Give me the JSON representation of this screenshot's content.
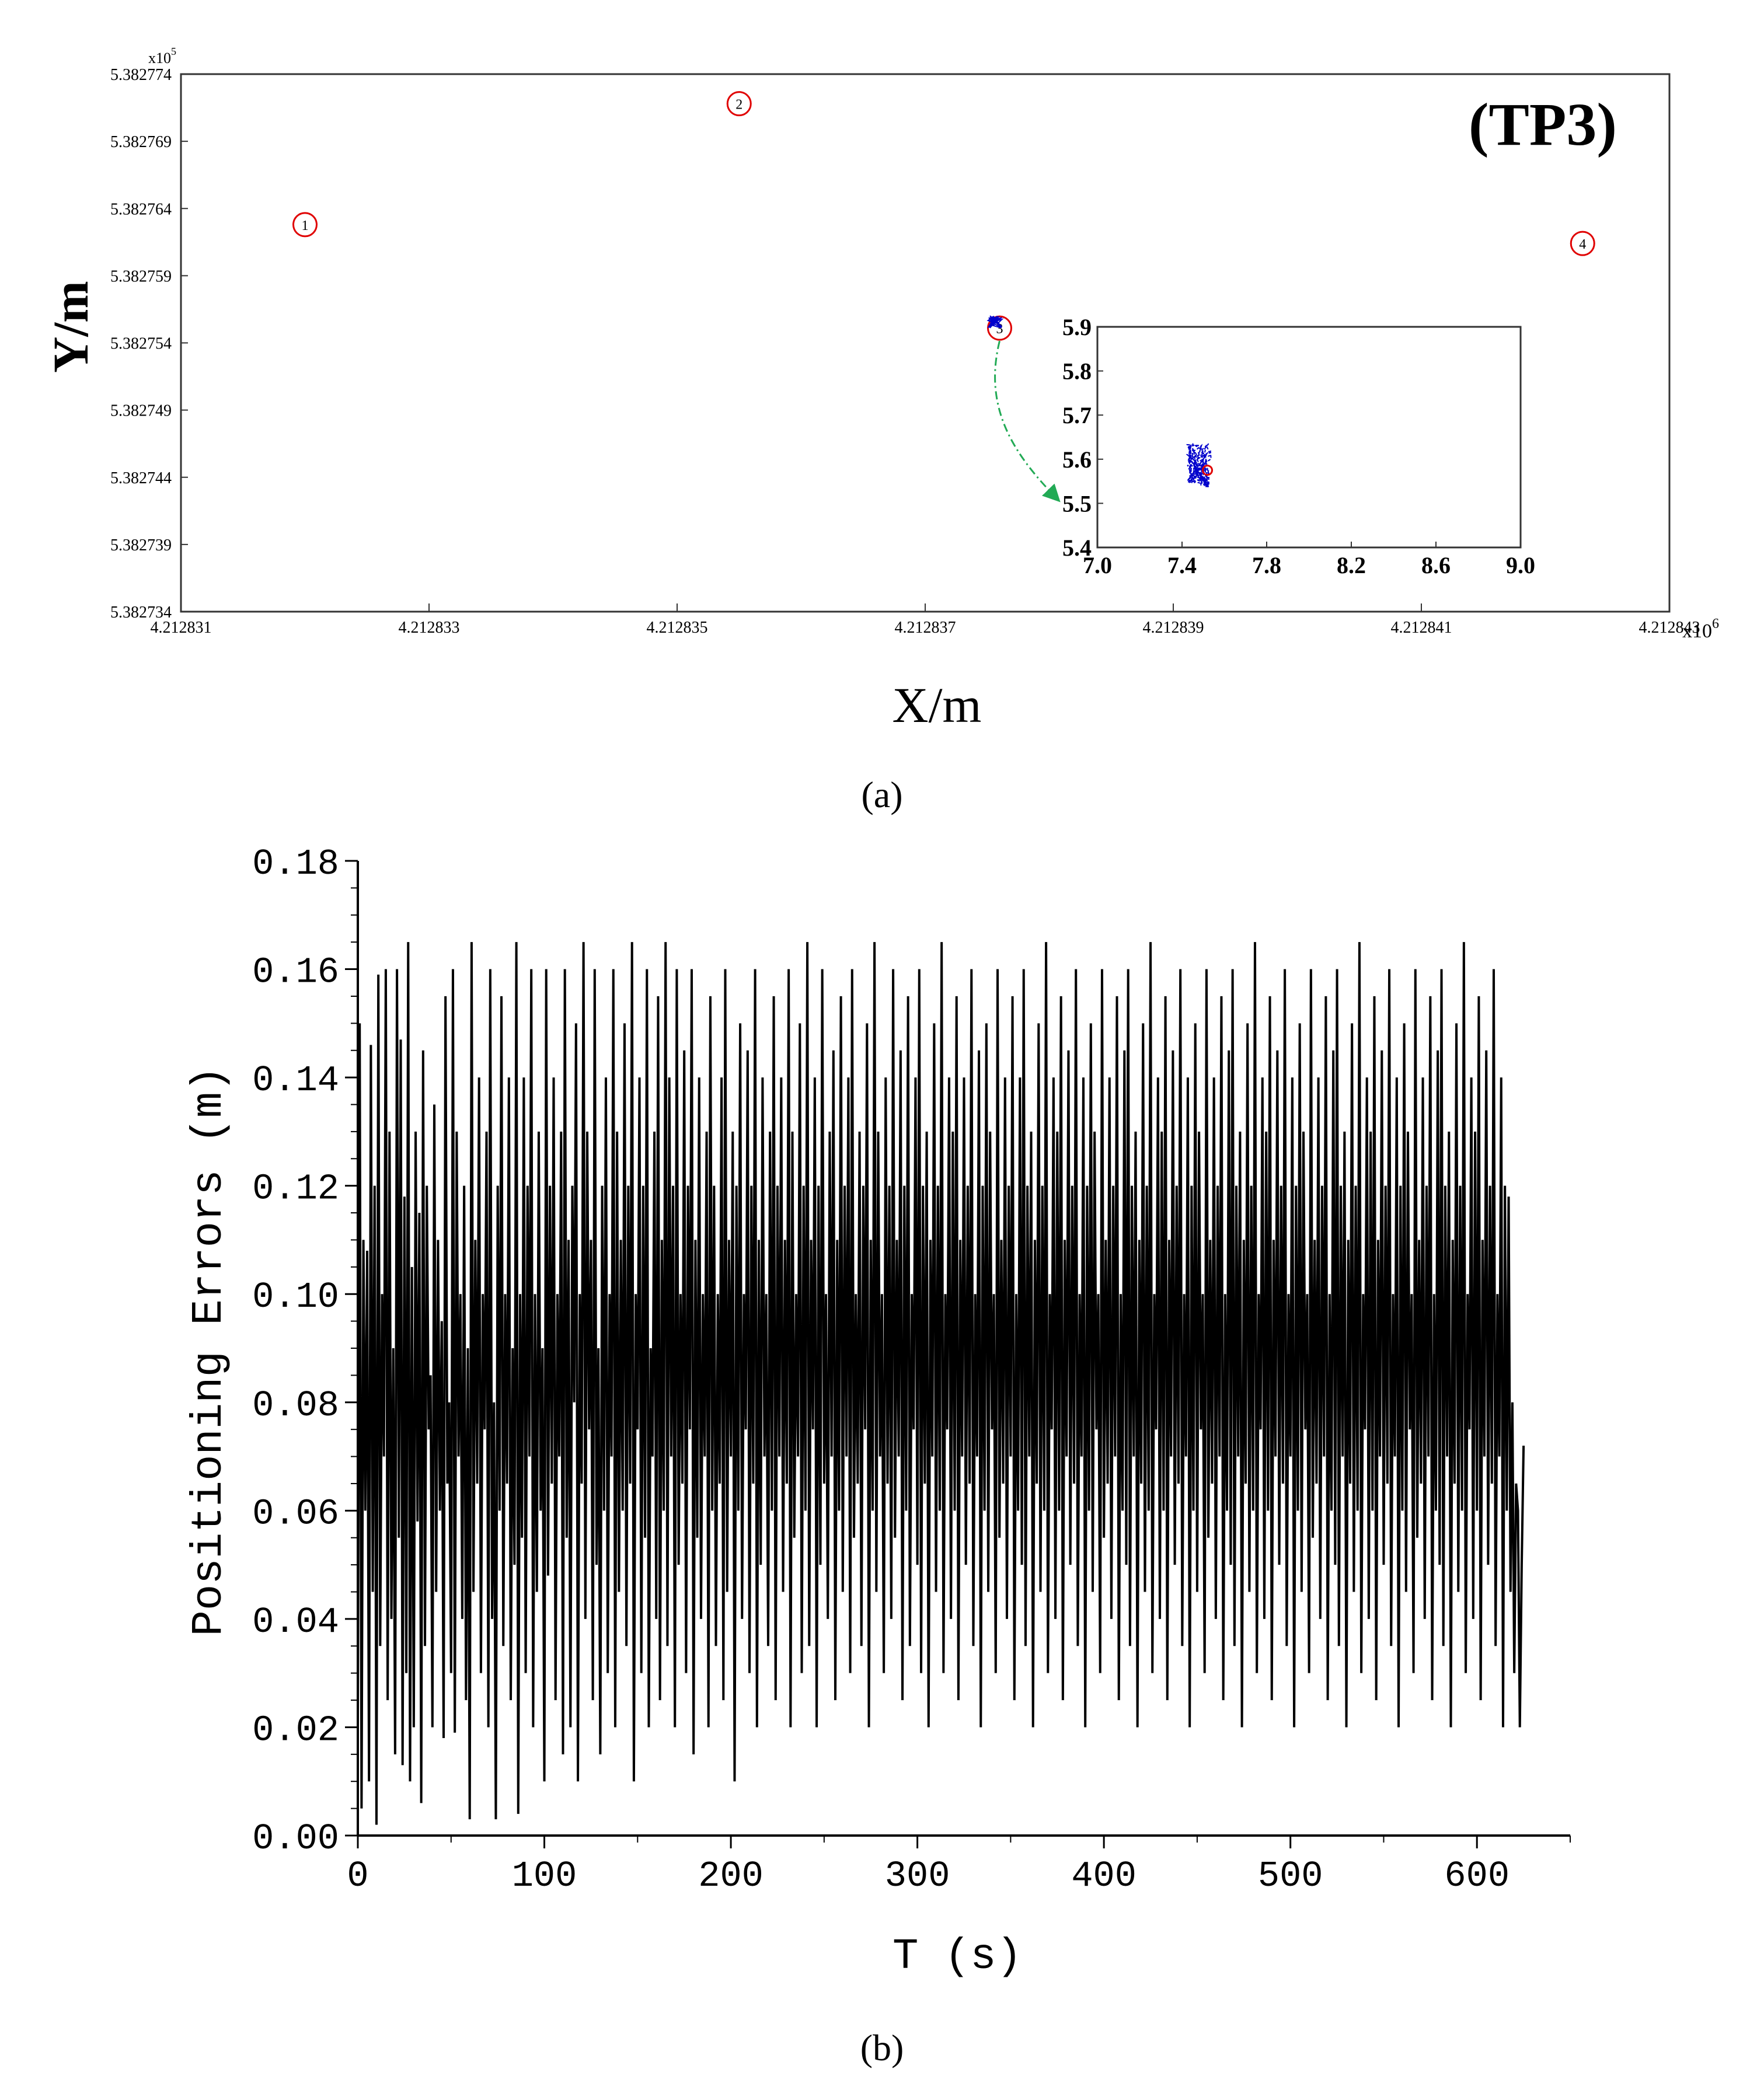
{
  "chart_data": [
    {
      "type": "scatter",
      "panel_label": "(a)",
      "title": "(TP3)",
      "xlabel": "X/m",
      "ylabel": "Y/m",
      "x_multiplier": "x10",
      "x_multiplier_exp": "6",
      "y_multiplier": "x10",
      "y_multiplier_exp": "5",
      "xlim": [
        4.212831,
        4.212843
      ],
      "ylim": [
        5.382734,
        5.382774
      ],
      "x_ticks": [
        "4.212831",
        "4.212833",
        "4.212835",
        "4.212837",
        "4.212839",
        "4.212841",
        "4.212843"
      ],
      "y_ticks": [
        "5.382734",
        "5.382739",
        "5.382744",
        "5.382749",
        "5.382754",
        "5.382759",
        "5.382764",
        "5.382769",
        "5.382774"
      ],
      "anchors": [
        {
          "label": "1",
          "x": 4.212832,
          "y": 5.3827628
        },
        {
          "label": "2",
          "x": 4.2128355,
          "y": 5.3827718
        },
        {
          "label": "3",
          "x": 4.2128376,
          "y": 5.3827551
        },
        {
          "label": "4",
          "x": 4.2128423,
          "y": 5.3827614
        }
      ],
      "estimate_center": {
        "x": 4.212837562,
        "y": 5.38275558
      },
      "colors": {
        "anchor": "#e00000",
        "estimate": "#0000cc",
        "arrow": "#22aa55",
        "axis": "#333333"
      },
      "inset": {
        "xlim": [
          7.0,
          9.0
        ],
        "ylim": [
          5.4,
          5.9
        ],
        "x_ticks": [
          "7.0",
          "7.4",
          "7.8",
          "8.2",
          "8.6",
          "9.0"
        ],
        "y_ticks": [
          "5.4",
          "5.5",
          "5.6",
          "5.7",
          "5.8",
          "5.9"
        ],
        "true_point": {
          "x": 7.52,
          "y": 5.575
        },
        "estimate_center": {
          "x": 7.48,
          "y": 5.585
        }
      }
    },
    {
      "type": "line",
      "panel_label": "(b)",
      "xlabel": "T (s)",
      "ylabel": "Positioning Errors (m)",
      "xlim": [
        0,
        650
      ],
      "ylim": [
        0,
        0.18
      ],
      "x_ticks": [
        "0",
        "100",
        "200",
        "300",
        "400",
        "500",
        "600"
      ],
      "y_ticks": [
        "0.00",
        "0.02",
        "0.04",
        "0.06",
        "0.08",
        "0.10",
        "0.12",
        "0.14",
        "0.16",
        "0.18"
      ],
      "t_start": 0,
      "t_end": 600,
      "t_step": 1,
      "series_color": "#000000",
      "envelope": [
        0.005,
        0.166
      ],
      "y": [
        0.02,
        0.15,
        0.005,
        0.11,
        0.06,
        0.108,
        0.01,
        0.146,
        0.045,
        0.12,
        0.002,
        0.159,
        0.035,
        0.1,
        0.07,
        0.16,
        0.025,
        0.13,
        0.04,
        0.09,
        0.015,
        0.16,
        0.055,
        0.147,
        0.013,
        0.118,
        0.03,
        0.165,
        0.01,
        0.105,
        0.02,
        0.13,
        0.058,
        0.115,
        0.006,
        0.145,
        0.035,
        0.12,
        0.075,
        0.085,
        0.02,
        0.135,
        0.045,
        0.11,
        0.06,
        0.095,
        0.018,
        0.155,
        0.065,
        0.08,
        0.03,
        0.16,
        0.019,
        0.13,
        0.07,
        0.1,
        0.04,
        0.12,
        0.025,
        0.09,
        0.003,
        0.165,
        0.045,
        0.11,
        0.065,
        0.14,
        0.03,
        0.1,
        0.075,
        0.13,
        0.02,
        0.16,
        0.04,
        0.08,
        0.003,
        0.12,
        0.06,
        0.155,
        0.035,
        0.1,
        0.065,
        0.14,
        0.025,
        0.09,
        0.05,
        0.165,
        0.004,
        0.1,
        0.055,
        0.14,
        0.03,
        0.12,
        0.07,
        0.16,
        0.02,
        0.1,
        0.045,
        0.13,
        0.06,
        0.09,
        0.01,
        0.16,
        0.048,
        0.12,
        0.065,
        0.14,
        0.025,
        0.1,
        0.07,
        0.13,
        0.015,
        0.16,
        0.055,
        0.11,
        0.02,
        0.12,
        0.08,
        0.15,
        0.01,
        0.1,
        0.065,
        0.165,
        0.04,
        0.13,
        0.075,
        0.11,
        0.025,
        0.16,
        0.05,
        0.09,
        0.015,
        0.12,
        0.06,
        0.14,
        0.03,
        0.1,
        0.07,
        0.16,
        0.02,
        0.13,
        0.045,
        0.11,
        0.06,
        0.15,
        0.035,
        0.12,
        0.065,
        0.165,
        0.01,
        0.1,
        0.075,
        0.14,
        0.03,
        0.12,
        0.055,
        0.16,
        0.02,
        0.09,
        0.07,
        0.13,
        0.04,
        0.155,
        0.025,
        0.11,
        0.06,
        0.165,
        0.035,
        0.14,
        0.07,
        0.12,
        0.02,
        0.16,
        0.05,
        0.1,
        0.065,
        0.145,
        0.03,
        0.12,
        0.075,
        0.16,
        0.015,
        0.11,
        0.055,
        0.14,
        0.04,
        0.1,
        0.07,
        0.13,
        0.02,
        0.155,
        0.06,
        0.12,
        0.035,
        0.1,
        0.065,
        0.14,
        0.025,
        0.16,
        0.045,
        0.11,
        0.07,
        0.13,
        0.01,
        0.12,
        0.06,
        0.15,
        0.04,
        0.1,
        0.075,
        0.145,
        0.03,
        0.12,
        0.065,
        0.16,
        0.02,
        0.11,
        0.05,
        0.14,
        0.07,
        0.1,
        0.035,
        0.13,
        0.06,
        0.155,
        0.025,
        0.12,
        0.07,
        0.14,
        0.045,
        0.11,
        0.065,
        0.16,
        0.02,
        0.13,
        0.055,
        0.1,
        0.07,
        0.15,
        0.03,
        0.12,
        0.06,
        0.165,
        0.035,
        0.11,
        0.075,
        0.14,
        0.02,
        0.12,
        0.05,
        0.16,
        0.065,
        0.1,
        0.04,
        0.13,
        0.07,
        0.145,
        0.025,
        0.11,
        0.06,
        0.155,
        0.045,
        0.12,
        0.07,
        0.14,
        0.03,
        0.16,
        0.055,
        0.1,
        0.065,
        0.13,
        0.035,
        0.12,
        0.075,
        0.15,
        0.02,
        0.11,
        0.06,
        0.165,
        0.045,
        0.13,
        0.07,
        0.1,
        0.03,
        0.14,
        0.065,
        0.12,
        0.04,
        0.16,
        0.055,
        0.11,
        0.07,
        0.145,
        0.025,
        0.12,
        0.06,
        0.155,
        0.035,
        0.1,
        0.075,
        0.14,
        0.05,
        0.16,
        0.03,
        0.12,
        0.065,
        0.13,
        0.02,
        0.11,
        0.07,
        0.15,
        0.045,
        0.12,
        0.06,
        0.165,
        0.03,
        0.1,
        0.075,
        0.14,
        0.04,
        0.13,
        0.06,
        0.155,
        0.025,
        0.11,
        0.07,
        0.14,
        0.05,
        0.12,
        0.065,
        0.16,
        0.035,
        0.1,
        0.07,
        0.145,
        0.02,
        0.12,
        0.06,
        0.15,
        0.045,
        0.13,
        0.075,
        0.1,
        0.03,
        0.16,
        0.055,
        0.11,
        0.065,
        0.14,
        0.04,
        0.12,
        0.07,
        0.155,
        0.025,
        0.1,
        0.06,
        0.14,
        0.05,
        0.16,
        0.035,
        0.12,
        0.07,
        0.13,
        0.02,
        0.11,
        0.065,
        0.15,
        0.045,
        0.12,
        0.06,
        0.165,
        0.03,
        0.1,
        0.075,
        0.14,
        0.04,
        0.13,
        0.06,
        0.155,
        0.025,
        0.11,
        0.07,
        0.145,
        0.05,
        0.12,
        0.065,
        0.16,
        0.035,
        0.1,
        0.07,
        0.14,
        0.02,
        0.12,
        0.06,
        0.15,
        0.045,
        0.13,
        0.075,
        0.1,
        0.03,
        0.16,
        0.055,
        0.11,
        0.065,
        0.14,
        0.04,
        0.12,
        0.07,
        0.155,
        0.025,
        0.1,
        0.06,
        0.145,
        0.05,
        0.16,
        0.035,
        0.12,
        0.07,
        0.13,
        0.02,
        0.11,
        0.065,
        0.15,
        0.045,
        0.12,
        0.06,
        0.165,
        0.03,
        0.1,
        0.075,
        0.14,
        0.04,
        0.13,
        0.06,
        0.155,
        0.025,
        0.11,
        0.07,
        0.145,
        0.05,
        0.12,
        0.065,
        0.16,
        0.035,
        0.1,
        0.07,
        0.14,
        0.02,
        0.12,
        0.06,
        0.15,
        0.045,
        0.13,
        0.075,
        0.1,
        0.03,
        0.16,
        0.055,
        0.11,
        0.065,
        0.14,
        0.04,
        0.12,
        0.07,
        0.155,
        0.025,
        0.1,
        0.06,
        0.145,
        0.05,
        0.16,
        0.035,
        0.12,
        0.07,
        0.13,
        0.02,
        0.11,
        0.065,
        0.15,
        0.045,
        0.12,
        0.06,
        0.165,
        0.03,
        0.1,
        0.075,
        0.14,
        0.04,
        0.13,
        0.06,
        0.155,
        0.025,
        0.11,
        0.07,
        0.145,
        0.05,
        0.12,
        0.065,
        0.16,
        0.035,
        0.1,
        0.07,
        0.14,
        0.02,
        0.12,
        0.06,
        0.15,
        0.045,
        0.13,
        0.075,
        0.1,
        0.03,
        0.16,
        0.055,
        0.11,
        0.065,
        0.14,
        0.04,
        0.12,
        0.07,
        0.155,
        0.025,
        0.1,
        0.06,
        0.145,
        0.05,
        0.16,
        0.035,
        0.12,
        0.07,
        0.13,
        0.02,
        0.11,
        0.065,
        0.15,
        0.045,
        0.12,
        0.06,
        0.165,
        0.03,
        0.1,
        0.075,
        0.14,
        0.04,
        0.13,
        0.06,
        0.155,
        0.025,
        0.11,
        0.07,
        0.145,
        0.05,
        0.12,
        0.065,
        0.16,
        0.035,
        0.1,
        0.07,
        0.14,
        0.02,
        0.12,
        0.06,
        0.15,
        0.045,
        0.13,
        0.075,
        0.1,
        0.03,
        0.16,
        0.055,
        0.11,
        0.065,
        0.14,
        0.04,
        0.12,
        0.07,
        0.155,
        0.025,
        0.1,
        0.06,
        0.145,
        0.05,
        0.16,
        0.035,
        0.12,
        0.07,
        0.13,
        0.02,
        0.11,
        0.065,
        0.15,
        0.045,
        0.12,
        0.06,
        0.165,
        0.03,
        0.1,
        0.075,
        0.14,
        0.04,
        0.13,
        0.06,
        0.155,
        0.025,
        0.11,
        0.07,
        0.145,
        0.05,
        0.12,
        0.065,
        0.16,
        0.035,
        0.1,
        0.07,
        0.14,
        0.02,
        0.12,
        0.06,
        0.118,
        0.045,
        0.08,
        0.03,
        0.065,
        0.06,
        0.02,
        0.05,
        0.072
      ]
    }
  ]
}
